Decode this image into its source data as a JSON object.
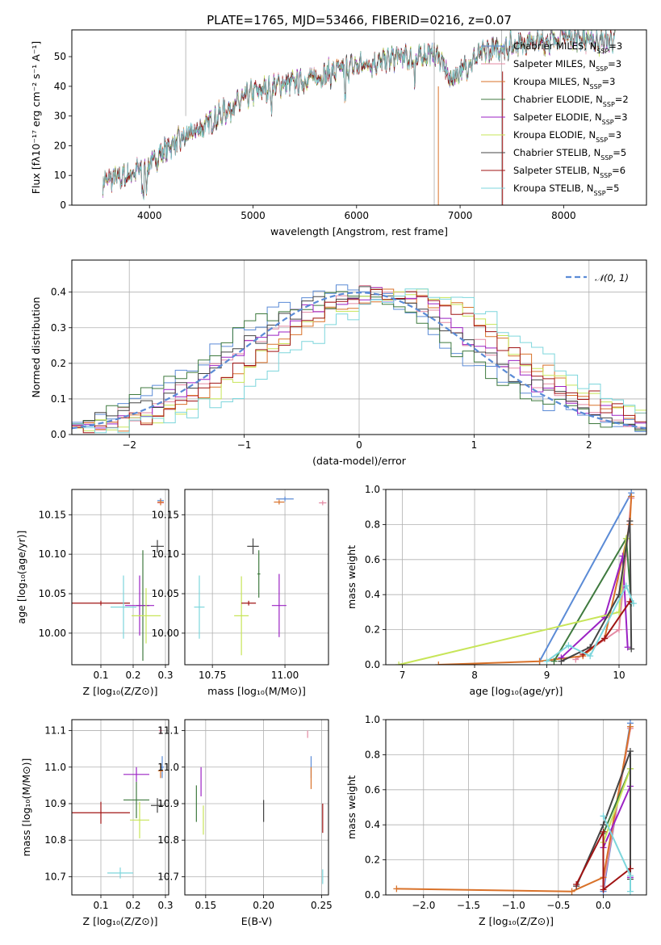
{
  "colors": [
    "#5b8bd6",
    "#e48aa3",
    "#d9722a",
    "#3f7a3f",
    "#9b22c4",
    "#c7e558",
    "#444444",
    "#a01414",
    "#7dd6dc"
  ],
  "chart_data": [
    {
      "id": "spectrum",
      "type": "line",
      "title": "PLATE=1765, MJD=53466, FIBERID=0216, z=0.07",
      "xlabel": "wavelength [Angstrom, rest frame]",
      "ylabel": "Flux [fλ10⁻¹⁷ erg cm⁻² s⁻¹ A⁻¹]",
      "xlim": [
        3250,
        8800
      ],
      "ylim": [
        0,
        59
      ],
      "xticks": [
        4000,
        5000,
        6000,
        7000,
        8000
      ],
      "xtick_labels": [
        "4000",
        "5000",
        "6000",
        "7000",
        "8000"
      ],
      "yticks": [
        0,
        10,
        20,
        30,
        40,
        50
      ],
      "ytick_labels": [
        "0",
        "10",
        "20",
        "30",
        "40",
        "50"
      ],
      "data_envelope": {
        "x": [
          3550,
          3800,
          4000,
          4200,
          4500,
          4800,
          5000,
          5200,
          5500,
          5800,
          6000,
          6200,
          6400,
          6560,
          6700,
          6800,
          6900,
          7000,
          7200,
          7400,
          7600,
          7800,
          8000,
          8200,
          8400,
          8500
        ],
        "y": [
          8,
          10,
          14,
          20,
          26,
          33,
          38,
          40,
          42,
          45,
          47,
          48,
          50,
          49,
          51,
          50,
          42,
          45,
          51,
          53,
          55,
          55,
          57,
          56,
          55,
          56
        ]
      },
      "series_names": [
        "Chabrier MILES, N_SSP=3",
        "Salpeter MILES, N_SSP=3",
        "Kroupa MILES, N_SSP=3",
        "Chabrier ELODIE, N_SSP=2",
        "Salpeter ELODIE, N_SSP=3",
        "Kroupa ELODIE, N_SSP=3",
        "Chabrier STELIB, N_SSP=5",
        "Salpeter STELIB, N_SSP=6",
        "Kroupa STELIB, N_SSP=5"
      ],
      "legend": [
        {
          "pre": "Chabrier MILES, N",
          "sub": "SSP",
          "post": "=3"
        },
        {
          "pre": "Salpeter MILES, N",
          "sub": "SSP",
          "post": "=3"
        },
        {
          "pre": "Kroupa MILES, N",
          "sub": "SSP",
          "post": "=3"
        },
        {
          "pre": "Chabrier ELODIE, N",
          "sub": "SSP",
          "post": "=2"
        },
        {
          "pre": "Salpeter ELODIE, N",
          "sub": "SSP",
          "post": "=3"
        },
        {
          "pre": "Kroupa ELODIE, N",
          "sub": "SSP",
          "post": "=3"
        },
        {
          "pre": "Chabrier STELIB, N",
          "sub": "SSP",
          "post": "=5"
        },
        {
          "pre": "Salpeter STELIB, N",
          "sub": "SSP",
          "post": "=6"
        },
        {
          "pre": "Kroupa STELIB, N",
          "sub": "SSP",
          "post": "=5"
        }
      ],
      "legend_position": "right",
      "grid": false
    },
    {
      "id": "residuals",
      "type": "histogram",
      "xlabel": "(data-model)/error",
      "ylabel": "Normed distribution",
      "xlim": [
        -2.5,
        2.5
      ],
      "ylim": [
        0,
        0.49
      ],
      "xticks": [
        -2,
        -1,
        0,
        1,
        2
      ],
      "xtick_labels": [
        "−2",
        "−1",
        "0",
        "1",
        "2"
      ],
      "yticks": [
        0,
        0.1,
        0.2,
        0.3,
        0.4
      ],
      "ytick_labels": [
        "0.0",
        "0.1",
        "0.2",
        "0.3",
        "0.4"
      ],
      "bin_width": 0.1,
      "reference_curve": {
        "name": "N(0,1)",
        "label": "𝒩(0, 1)",
        "mu": 0,
        "sigma": 1
      },
      "histogram_profile": {
        "x": [
          -2.5,
          -2.0,
          -1.5,
          -1.0,
          -0.5,
          0,
          0.5,
          1.0,
          1.5,
          2.0,
          2.5
        ],
        "y": [
          0.02,
          0.06,
          0.13,
          0.25,
          0.35,
          0.4,
          0.37,
          0.25,
          0.14,
          0.07,
          0.03
        ]
      },
      "grid": true
    },
    {
      "id": "age-vs-Z",
      "type": "errorbar",
      "xlabel": "Z [log₁₀(Z/Z⊙)]",
      "ylabel": "age  [log₁₀(age/yr)]",
      "xlim": [
        0.01,
        0.31
      ],
      "ylim": [
        9.96,
        10.182
      ],
      "xticks": [
        0.1,
        0.2,
        0.3
      ],
      "xtick_labels": [
        "0.1",
        "0.2",
        "0.3"
      ],
      "yticks": [
        10.0,
        10.05,
        10.1,
        10.15
      ],
      "ytick_labels": [
        "10.00",
        "10.05",
        "10.10",
        "10.15"
      ],
      "points": [
        {
          "x": 0.285,
          "y": 10.168,
          "xerr": 0.01,
          "yerr": 0.003
        },
        {
          "x": 0.285,
          "y": 10.165,
          "xerr": 0.01,
          "yerr": 0.003
        },
        {
          "x": 0.285,
          "y": 10.166,
          "xerr": 0.01,
          "yerr": 0.004
        },
        {
          "x": 0.23,
          "y": 10.035,
          "xerr": 0.02,
          "yerr": 0.07
        },
        {
          "x": 0.22,
          "y": 10.035,
          "xerr": 0.045,
          "yerr": 0.038
        },
        {
          "x": 0.24,
          "y": 10.022,
          "xerr": 0.045,
          "yerr": 0.035
        },
        {
          "x": 0.275,
          "y": 10.11,
          "xerr": 0.02,
          "yerr": 0.008
        },
        {
          "x": 0.1,
          "y": 10.038,
          "xerr": 0.09,
          "yerr": 0.003
        },
        {
          "x": 0.17,
          "y": 10.033,
          "xerr": 0.04,
          "yerr": 0.04
        }
      ],
      "grid": true
    },
    {
      "id": "age-vs-mass",
      "type": "errorbar",
      "xlabel": "mass [log₁₀(M/M⊙)]",
      "ylabel": "",
      "xlim": [
        10.655,
        11.15
      ],
      "ylim": [
        9.96,
        10.182
      ],
      "xticks": [
        10.75,
        11.0
      ],
      "xtick_labels": [
        "10.75",
        "11.00"
      ],
      "yticks": [
        10.0,
        10.05,
        10.1,
        10.15
      ],
      "ytick_labels": [
        "10.00",
        "10.05",
        "10.10",
        "10.15"
      ],
      "points": [
        {
          "x": 11.0,
          "y": 10.17,
          "xerr": 0.03,
          "yerr": 0.003
        },
        {
          "x": 11.13,
          "y": 10.165,
          "xerr": 0.013,
          "yerr": 0.003
        },
        {
          "x": 10.98,
          "y": 10.166,
          "xerr": 0.018,
          "yerr": 0.003
        },
        {
          "x": 10.91,
          "y": 10.075,
          "xerr": 0.005,
          "yerr": 0.03
        },
        {
          "x": 10.98,
          "y": 10.035,
          "xerr": 0.025,
          "yerr": 0.04
        },
        {
          "x": 10.85,
          "y": 10.022,
          "xerr": 0.025,
          "yerr": 0.05
        },
        {
          "x": 10.89,
          "y": 10.11,
          "xerr": 0.02,
          "yerr": 0.01
        },
        {
          "x": 10.875,
          "y": 10.038,
          "xerr": 0.025,
          "yerr": 0.003
        },
        {
          "x": 10.705,
          "y": 10.033,
          "xerr": 0.018,
          "yerr": 0.04
        }
      ],
      "grid": true
    },
    {
      "id": "mass-weight-vs-age",
      "type": "line",
      "xlabel": "age  [log₁₀(age/yr)]",
      "ylabel": "mass weight",
      "xlim": [
        6.77,
        10.38
      ],
      "ylim": [
        0,
        1.0
      ],
      "xticks": [
        7,
        8,
        9,
        10
      ],
      "xtick_labels": [
        "7",
        "8",
        "9",
        "10"
      ],
      "yticks": [
        0,
        0.2,
        0.4,
        0.6,
        0.8,
        1.0
      ],
      "ytick_labels": [
        "0.0",
        "0.2",
        "0.4",
        "0.6",
        "0.8",
        "1.0"
      ],
      "series": [
        {
          "x": [
            8.9,
            10.17
          ],
          "y": [
            0.02,
            0.98
          ]
        },
        {
          "x": [
            9.4,
            10.0,
            10.17
          ],
          "y": [
            0.03,
            0.2,
            0.95
          ]
        },
        {
          "x": [
            7.5,
            8.9,
            9.5,
            9.8,
            10.15,
            10.17
          ],
          "y": [
            0.0,
            0.02,
            0.05,
            0.15,
            0.8,
            0.96
          ]
        },
        {
          "x": [
            9.1,
            10.1,
            10.17
          ],
          "y": [
            0.02,
            0.72,
            0.35
          ]
        },
        {
          "x": [
            9.2,
            9.8,
            10.05,
            10.12
          ],
          "y": [
            0.04,
            0.27,
            0.62,
            0.1
          ]
        },
        {
          "x": [
            6.95,
            10.0,
            10.1
          ],
          "y": [
            0.0,
            0.3,
            0.72
          ]
        },
        {
          "x": [
            9.2,
            9.6,
            10.0,
            10.15,
            10.17
          ],
          "y": [
            0.02,
            0.1,
            0.4,
            0.82,
            0.09
          ]
        },
        {
          "x": [
            9.5,
            9.8,
            10.15
          ],
          "y": [
            0.06,
            0.15,
            0.36
          ]
        },
        {
          "x": [
            9.0,
            9.3,
            9.6,
            10.1,
            10.2
          ],
          "y": [
            0.02,
            0.11,
            0.05,
            0.45,
            0.35
          ]
        }
      ],
      "grid": true
    },
    {
      "id": "mass-vs-Z",
      "type": "errorbar",
      "xlabel": "Z [log₁₀(Z/Z⊙)]",
      "ylabel": "mass [log₁₀(M/M⊙)]",
      "xlim": [
        0.01,
        0.31
      ],
      "ylim": [
        10.65,
        11.13
      ],
      "xticks": [
        0.1,
        0.2,
        0.3
      ],
      "xtick_labels": [
        "0.1",
        "0.2",
        "0.3"
      ],
      "yticks": [
        10.7,
        10.8,
        10.9,
        11.0,
        11.1
      ],
      "ytick_labels": [
        "10.7",
        "10.8",
        "10.9",
        "11.0",
        "11.1"
      ],
      "points": [
        {
          "x": 0.29,
          "y": 11.0,
          "xerr": 0.005,
          "yerr": 0.03
        },
        {
          "x": 0.285,
          "y": 11.1,
          "xerr": 0.005,
          "yerr": 0.01
        },
        {
          "x": 0.285,
          "y": 10.99,
          "xerr": 0.008,
          "yerr": 0.02
        },
        {
          "x": 0.21,
          "y": 10.91,
          "xerr": 0.04,
          "yerr": 0.05
        },
        {
          "x": 0.21,
          "y": 10.98,
          "xerr": 0.04,
          "yerr": 0.02
        },
        {
          "x": 0.22,
          "y": 10.855,
          "xerr": 0.03,
          "yerr": 0.05
        },
        {
          "x": 0.275,
          "y": 10.895,
          "xerr": 0.02,
          "yerr": 0.02
        },
        {
          "x": 0.1,
          "y": 10.875,
          "xerr": 0.09,
          "yerr": 0.03
        },
        {
          "x": 0.16,
          "y": 10.71,
          "xerr": 0.04,
          "yerr": 0.015
        }
      ],
      "grid": true
    },
    {
      "id": "mass-vs-ebv",
      "type": "errorbar",
      "xlabel": "E(B-V)",
      "ylabel": "",
      "xlim": [
        0.132,
        0.256
      ],
      "ylim": [
        10.65,
        11.13
      ],
      "xticks": [
        0.15,
        0.2,
        0.25
      ],
      "xtick_labels": [
        "0.15",
        "0.20",
        "0.25"
      ],
      "yticks": [
        10.7,
        10.8,
        10.9,
        11.0,
        11.1
      ],
      "ytick_labels": [
        "10.7",
        "10.8",
        "10.9",
        "11.0",
        "11.1"
      ],
      "points": [
        {
          "x": 0.241,
          "y": 11.0,
          "xerr": 0,
          "yerr": 0.03
        },
        {
          "x": 0.238,
          "y": 11.09,
          "xerr": 0,
          "yerr": 0.01
        },
        {
          "x": 0.241,
          "y": 10.97,
          "xerr": 0,
          "yerr": 0.03
        },
        {
          "x": 0.142,
          "y": 10.9,
          "xerr": 0,
          "yerr": 0.05
        },
        {
          "x": 0.146,
          "y": 10.96,
          "xerr": 0,
          "yerr": 0.04
        },
        {
          "x": 0.148,
          "y": 10.855,
          "xerr": 0,
          "yerr": 0.04
        },
        {
          "x": 0.2,
          "y": 10.88,
          "xerr": 0,
          "yerr": 0.03
        },
        {
          "x": 0.251,
          "y": 10.86,
          "xerr": 0,
          "yerr": 0.04
        },
        {
          "x": 0.251,
          "y": 10.7,
          "xerr": 0,
          "yerr": 0.02
        }
      ],
      "grid": true
    },
    {
      "id": "mass-weight-vs-Z",
      "type": "line",
      "xlabel": "Z [log₁₀(Z/Z⊙)]",
      "ylabel": "mass weight",
      "xlim": [
        -2.42,
        0.48
      ],
      "ylim": [
        0,
        1.0
      ],
      "xticks": [
        -2.0,
        -1.5,
        -1.0,
        -0.5,
        0.0
      ],
      "xtick_labels": [
        "−2.0",
        "−1.5",
        "−1.0",
        "−0.5",
        "0.0"
      ],
      "yticks": [
        0,
        0.2,
        0.4,
        0.6,
        0.8,
        1.0
      ],
      "ytick_labels": [
        "0.0",
        "0.2",
        "0.4",
        "0.6",
        "0.8",
        "1.0"
      ],
      "series": [
        {
          "x": [
            0.0,
            0.3
          ],
          "y": [
            0.02,
            0.98
          ]
        },
        {
          "x": [
            0.0,
            0.3
          ],
          "y": [
            0.05,
            0.95
          ]
        },
        {
          "x": [
            -2.3,
            -0.35,
            0.0,
            0.3
          ],
          "y": [
            0.035,
            0.02,
            0.1,
            0.96
          ]
        },
        {
          "x": [
            0.0,
            0.3
          ],
          "y": [
            0.35,
            0.72
          ]
        },
        {
          "x": [
            0.0,
            0.3,
            0.3
          ],
          "y": [
            0.27,
            0.62,
            0.1
          ]
        },
        {
          "x": [
            0.0,
            0.3
          ],
          "y": [
            0.3,
            0.72
          ]
        },
        {
          "x": [
            -0.3,
            0.0,
            0.3,
            0.3
          ],
          "y": [
            0.05,
            0.4,
            0.82,
            0.09
          ]
        },
        {
          "x": [
            -0.3,
            0.0,
            0.0,
            0.3
          ],
          "y": [
            0.06,
            0.36,
            0.03,
            0.15
          ]
        },
        {
          "x": [
            0.0,
            0.3,
            0.3
          ],
          "y": [
            0.45,
            0.11,
            0.02
          ]
        }
      ],
      "grid": true
    }
  ]
}
